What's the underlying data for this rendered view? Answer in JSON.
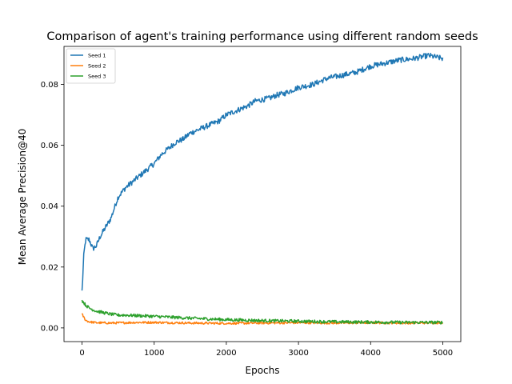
{
  "chart_data": {
    "type": "line",
    "title": "Comparison of agent's training performance using different random seeds",
    "xlabel": "Epochs",
    "ylabel": "Mean Average Precision@40",
    "xlim": [
      -250,
      5250
    ],
    "ylim": [
      -0.0045,
      0.0925
    ],
    "x_ticks": [
      0,
      1000,
      2000,
      3000,
      4000,
      5000
    ],
    "x_tick_labels": [
      "0",
      "1000",
      "2000",
      "3000",
      "4000",
      "5000"
    ],
    "y_ticks": [
      0.0,
      0.02,
      0.04,
      0.06,
      0.08
    ],
    "y_tick_labels": [
      "0.00",
      "0.02",
      "0.04",
      "0.06",
      "0.08"
    ],
    "grid": false,
    "legend_position": "top-left",
    "series": [
      {
        "name": "Seed 1",
        "color": "#1f77b4",
        "x": [
          0,
          25,
          50,
          100,
          150,
          200,
          250,
          300,
          400,
          500,
          600,
          700,
          800,
          900,
          1000,
          1100,
          1200,
          1300,
          1400,
          1500,
          1600,
          1700,
          1800,
          1900,
          2000,
          2100,
          2200,
          2300,
          2400,
          2500,
          2600,
          2700,
          2800,
          2900,
          3000,
          3200,
          3400,
          3600,
          3800,
          4000,
          4200,
          4400,
          4600,
          4800,
          5000
        ],
        "values": [
          0.012,
          0.024,
          0.029,
          0.029,
          0.026,
          0.027,
          0.03,
          0.032,
          0.036,
          0.043,
          0.046,
          0.048,
          0.05,
          0.052,
          0.054,
          0.057,
          0.059,
          0.061,
          0.062,
          0.064,
          0.065,
          0.066,
          0.067,
          0.068,
          0.07,
          0.071,
          0.072,
          0.073,
          0.0745,
          0.075,
          0.0755,
          0.0765,
          0.077,
          0.078,
          0.079,
          0.08,
          0.082,
          0.083,
          0.084,
          0.086,
          0.087,
          0.088,
          0.0885,
          0.0895,
          0.0885
        ]
      },
      {
        "name": "Seed 2",
        "color": "#ff7f0e",
        "x": [
          0,
          50,
          100,
          200,
          400,
          600,
          800,
          1000,
          1500,
          2000,
          2500,
          3000,
          3500,
          4000,
          4500,
          5000
        ],
        "values": [
          0.0045,
          0.0025,
          0.002,
          0.0017,
          0.0016,
          0.0017,
          0.0018,
          0.0018,
          0.0016,
          0.0015,
          0.0016,
          0.0017,
          0.0016,
          0.0017,
          0.0016,
          0.0017
        ]
      },
      {
        "name": "Seed 3",
        "color": "#2ca02c",
        "x": [
          0,
          50,
          100,
          200,
          300,
          400,
          500,
          600,
          800,
          1000,
          1500,
          2000,
          2500,
          3000,
          3500,
          4000,
          4500,
          5000
        ],
        "values": [
          0.009,
          0.0075,
          0.0065,
          0.0055,
          0.005,
          0.0045,
          0.0042,
          0.0042,
          0.004,
          0.0038,
          0.0032,
          0.0027,
          0.0024,
          0.0022,
          0.002,
          0.0019,
          0.0018,
          0.0018
        ]
      }
    ]
  }
}
